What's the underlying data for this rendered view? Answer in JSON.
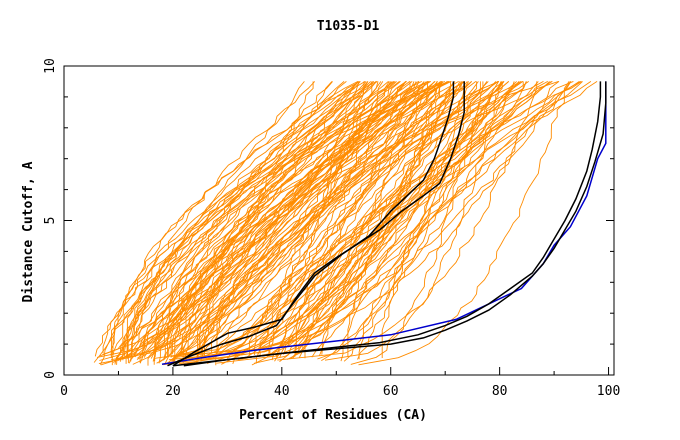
{
  "chart_data": {
    "type": "line",
    "title": "T1035-D1",
    "xlabel": "Percent of Residues (CA)",
    "ylabel": "Distance Cutoff, A",
    "xlim": [
      0,
      101
    ],
    "ylim": [
      0,
      10
    ],
    "x_ticks": [
      0,
      20,
      40,
      60,
      80,
      100
    ],
    "x_tick_labels": [
      "0",
      "20",
      "40",
      "60",
      "80",
      "100"
    ],
    "y_ticks": [
      0,
      5,
      10
    ],
    "y_tick_labels": [
      "0",
      "5",
      "10"
    ],
    "grid": false,
    "legend": "none",
    "colors": {
      "background_series": "#ff8c00",
      "highlight_black": "#000000",
      "highlight_blue": "#0000cd"
    },
    "background_series_count": 140,
    "background_x_range_at_low_cutoff": [
      5,
      65
    ],
    "background_x_range_at_high_cutoff": [
      42,
      100
    ],
    "series": [
      {
        "color": "#0000cd",
        "width": 1.5,
        "x": [
          18,
          25,
          35,
          50,
          60,
          72,
          78,
          84,
          88,
          90,
          93,
          96,
          98,
          99.5,
          99.5
        ],
        "y": [
          0.35,
          0.55,
          0.8,
          1.1,
          1.3,
          1.8,
          2.3,
          2.8,
          3.6,
          4.2,
          4.8,
          5.8,
          7.0,
          7.5,
          9.5
        ]
      },
      {
        "color": "#000000",
        "width": 1.5,
        "x": [
          20,
          30,
          40,
          50,
          58,
          65,
          70,
          74,
          78,
          82,
          86,
          88,
          90,
          92,
          94,
          96,
          97,
          98,
          98.5,
          98.5
        ],
        "y": [
          0.3,
          0.5,
          0.7,
          0.9,
          1.05,
          1.3,
          1.6,
          1.9,
          2.3,
          2.8,
          3.3,
          3.8,
          4.4,
          5.0,
          5.7,
          6.6,
          7.3,
          8.2,
          9.0,
          9.5
        ]
      },
      {
        "color": "#000000",
        "width": 1.5,
        "x": [
          22,
          30,
          40,
          50,
          60,
          66,
          70,
          74,
          78,
          82,
          86,
          88,
          90,
          92,
          94,
          96,
          97.5,
          99,
          99.5,
          99.5
        ],
        "y": [
          0.3,
          0.5,
          0.7,
          0.85,
          1.0,
          1.2,
          1.45,
          1.75,
          2.1,
          2.6,
          3.2,
          3.6,
          4.1,
          4.7,
          5.3,
          6.1,
          6.9,
          7.8,
          8.8,
          9.5
        ]
      },
      {
        "color": "#000000",
        "width": 1.5,
        "x": [
          19,
          23,
          29,
          34,
          39,
          42,
          46,
          51,
          56,
          60,
          63,
          66,
          68,
          69,
          70.5,
          71.5,
          71.5
        ],
        "y": [
          0.3,
          0.6,
          1.0,
          1.25,
          1.6,
          2.3,
          3.2,
          3.9,
          4.5,
          5.3,
          5.8,
          6.3,
          7.0,
          7.5,
          8.3,
          9.0,
          9.5
        ]
      },
      {
        "color": "#000000",
        "width": 1.5,
        "x": [
          20,
          24,
          30,
          35,
          40,
          43,
          46,
          50,
          54,
          58,
          62,
          66,
          69,
          71,
          72.5,
          73.5,
          73.5
        ],
        "y": [
          0.3,
          0.75,
          1.35,
          1.55,
          1.8,
          2.6,
          3.3,
          3.8,
          4.25,
          4.7,
          5.3,
          5.8,
          6.2,
          7.0,
          7.8,
          8.5,
          9.5
        ]
      }
    ]
  }
}
